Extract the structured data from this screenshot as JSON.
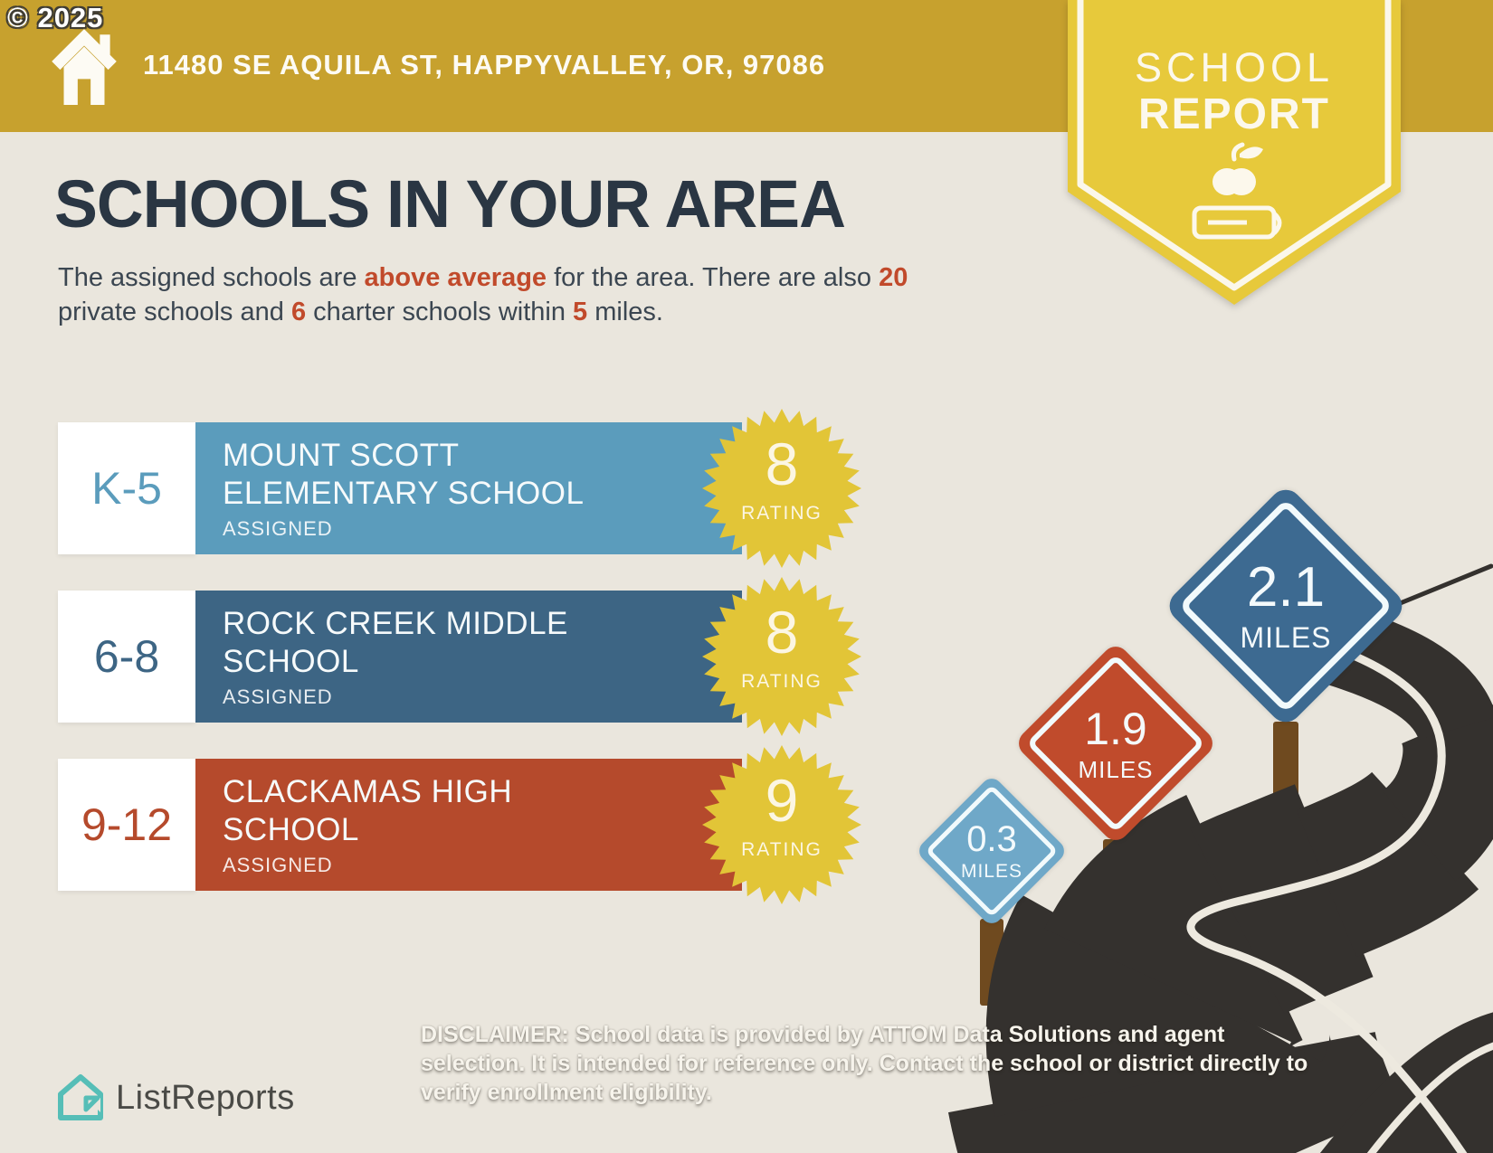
{
  "copyright": "© 2025",
  "header": {
    "address": "11480 SE AQUILA ST, HAPPYVALLEY, OR, 97086"
  },
  "report_badge": {
    "line1": "SCHOOL",
    "line2": "REPORT"
  },
  "main": {
    "title": "SCHOOLS IN YOUR AREA",
    "intro_segments": [
      {
        "text": "The assigned schools are ",
        "accent": false
      },
      {
        "text": "above average",
        "accent": true
      },
      {
        "text": " for the area. There are also ",
        "accent": false
      },
      {
        "text": "20",
        "accent": true
      },
      {
        "text": " private schools and ",
        "accent": false
      },
      {
        "text": "6",
        "accent": true
      },
      {
        "text": " charter schools within ",
        "accent": false
      },
      {
        "text": "5",
        "accent": true
      },
      {
        "text": " miles.",
        "accent": false
      }
    ]
  },
  "schools": [
    {
      "grades": "K-5",
      "name": "MOUNT SCOTT ELEMENTARY SCHOOL",
      "status": "ASSIGNED",
      "rating": "8",
      "rating_label": "RATING",
      "color": "#5B9CBC"
    },
    {
      "grades": "6-8",
      "name": "ROCK CREEK MIDDLE SCHOOL",
      "status": "ASSIGNED",
      "rating": "8",
      "rating_label": "RATING",
      "color": "#3D6584"
    },
    {
      "grades": "9-12",
      "name": "CLACKAMAS HIGH SCHOOL",
      "status": "ASSIGNED",
      "rating": "9",
      "rating_label": "RATING",
      "color": "#B54A2C"
    }
  ],
  "distance_signs": [
    {
      "distance": "0.3",
      "unit": "MILES",
      "color": "#6FA8C8"
    },
    {
      "distance": "1.9",
      "unit": "MILES",
      "color": "#C04B2C"
    },
    {
      "distance": "2.1",
      "unit": "MILES",
      "color": "#3D6A91"
    }
  ],
  "footer": {
    "brand": "ListReports",
    "disclaimer_label": "DISCLAIMER:",
    "disclaimer_text": " School data is provided by ATTOM Data Solutions and agent selection. It is intended for reference only. Contact the school or district directly to verify enrollment eligibility."
  },
  "colors": {
    "banner_gold": "#C7A12E",
    "badge_yellow": "#E7C93B",
    "rating_yellow": "#E2C537",
    "title_navy": "#2A3643",
    "accent_red": "#C14A2B",
    "background": "#EAE6DD",
    "road": "#34312E",
    "post_brown": "#6F4A1F",
    "logo_teal": "#56BEB7"
  }
}
